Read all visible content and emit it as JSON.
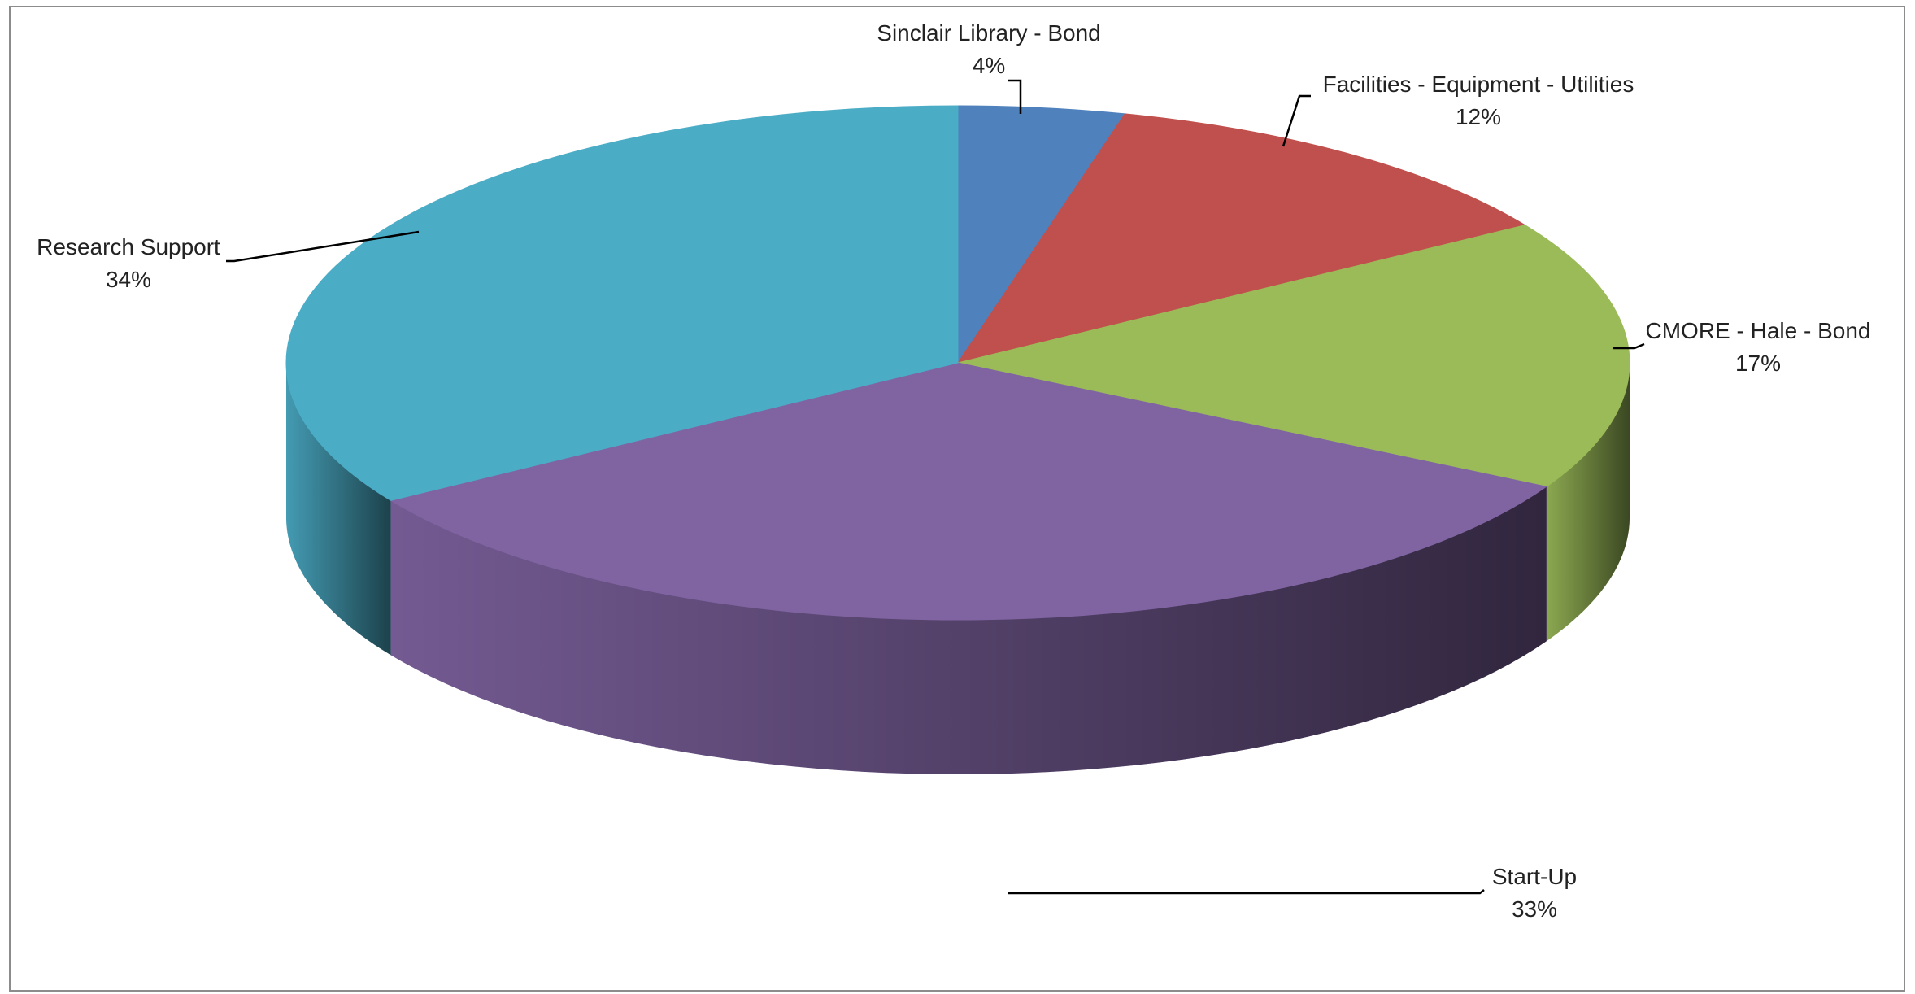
{
  "chart_data": {
    "type": "pie",
    "title": "",
    "style": "3d-exploded-none",
    "start_angle_deg": 0,
    "direction": "clockwise",
    "slices": [
      {
        "label": "Sinclair Library - Bond",
        "percent_label": "4%",
        "value": 4,
        "color": "#4F81BD"
      },
      {
        "label": "Facilities - Equipment - Utilities",
        "percent_label": "12%",
        "value": 12,
        "color": "#C0504D"
      },
      {
        "label": "CMORE - Hale - Bond",
        "percent_label": "17%",
        "value": 17,
        "color": "#9BBB59"
      },
      {
        "label": "Start-Up",
        "percent_label": "33%",
        "value": 33,
        "color": "#8064A2"
      },
      {
        "label": "Research Support",
        "percent_label": "34%",
        "value": 34,
        "color": "#4BACC6"
      }
    ],
    "legend": "none",
    "data_labels": "outside-with-leader-lines"
  }
}
